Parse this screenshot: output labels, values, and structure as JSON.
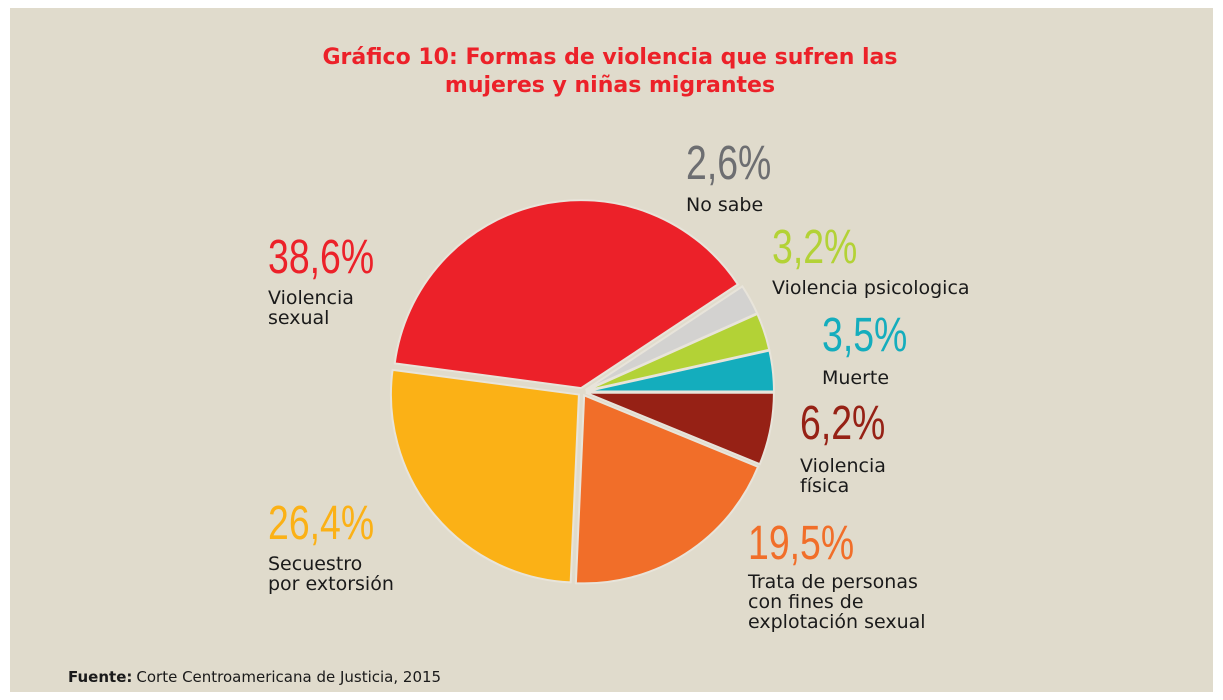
{
  "chart_data": {
    "type": "pie",
    "title": "Gráfico 10: Formas de violencia que sufren las mujeres y niñas migrantes",
    "categories": [
      "Muerte",
      "Violencia psicologica",
      "No sabe",
      "Violencia\nsexual",
      "Secuestro\npor extorsión",
      "Trata de personas\ncon fines de\nexplotación sexual",
      "Violencia\nfísica"
    ],
    "values": [
      3.5,
      3.2,
      2.6,
      38.6,
      26.4,
      19.5,
      6.2
    ],
    "value_labels": [
      "3,5%",
      "3,2%",
      "2,6%",
      "38,6%",
      "26,4%",
      "19,5%",
      "6,2%"
    ],
    "colors": [
      "#14adbd",
      "#b3d236",
      "#d3d2d0",
      "#ec2129",
      "#fbb116",
      "#f16e29",
      "#962115"
    ],
    "value_label_colors": [
      "#14adbd",
      "#b3d236",
      "#6d6e71",
      "#ec2129",
      "#fbb116",
      "#f16e29",
      "#962115"
    ],
    "source": {
      "label": "Fuente:",
      "text": "Corte Centroamericana de Justicia, 2015"
    }
  }
}
